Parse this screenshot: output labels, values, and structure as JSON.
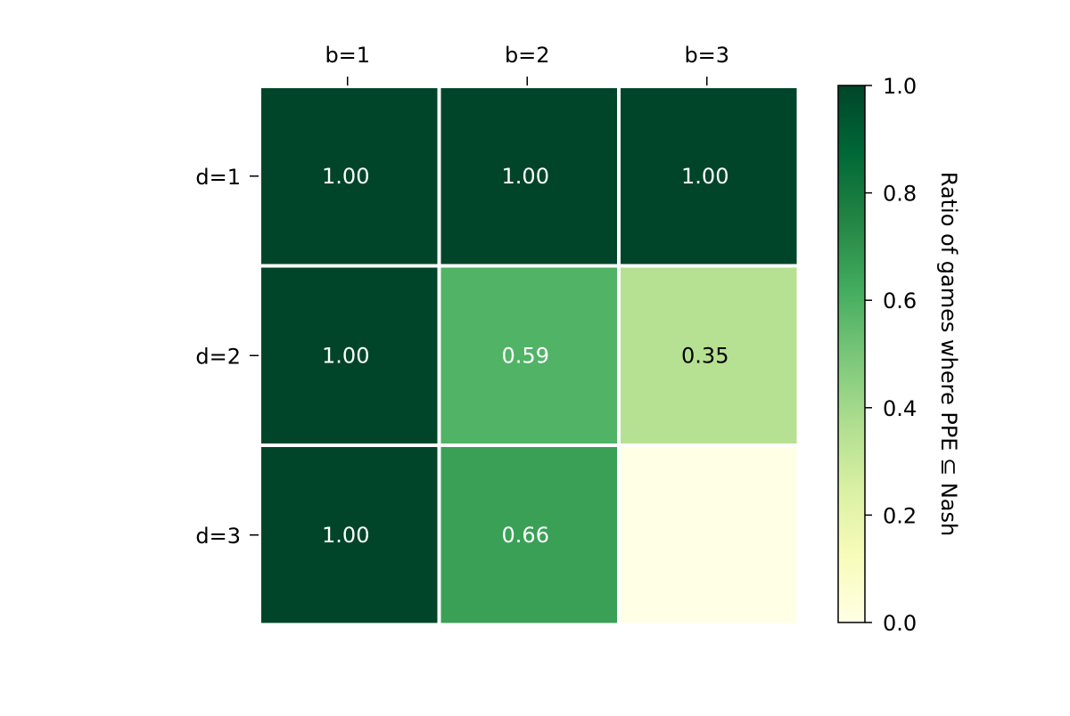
{
  "chart_data": {
    "type": "heatmap",
    "title": "",
    "x_categories": [
      "b=1",
      "b=2",
      "b=3"
    ],
    "y_categories": [
      "d=1",
      "d=2",
      "d=3"
    ],
    "values": [
      [
        1.0,
        1.0,
        1.0
      ],
      [
        1.0,
        0.59,
        0.35
      ],
      [
        1.0,
        0.66,
        null
      ]
    ],
    "cell_labels": [
      [
        "1.00",
        "1.00",
        "1.00"
      ],
      [
        "1.00",
        "0.59",
        "0.35"
      ],
      [
        "1.00",
        "0.66",
        ""
      ]
    ],
    "colorbar": {
      "label": "Ratio of games where PPE ⊆ Nash",
      "range": [
        0.0,
        1.0
      ],
      "ticks": [
        "0.0",
        "0.2",
        "0.4",
        "0.6",
        "0.8",
        "1.0"
      ],
      "colormap": "YlGn"
    },
    "x_axis_position": "top",
    "grid": false
  },
  "colors": {
    "cell_border": "#ffffff",
    "text_light": "#ffffff",
    "text_dark": "#000000",
    "axis": "#000000",
    "colormap_stops": [
      "#ffffe5",
      "#f7fcb9",
      "#d9f0a3",
      "#addd8e",
      "#78c679",
      "#41ab5d",
      "#238443",
      "#006837",
      "#004529"
    ]
  }
}
